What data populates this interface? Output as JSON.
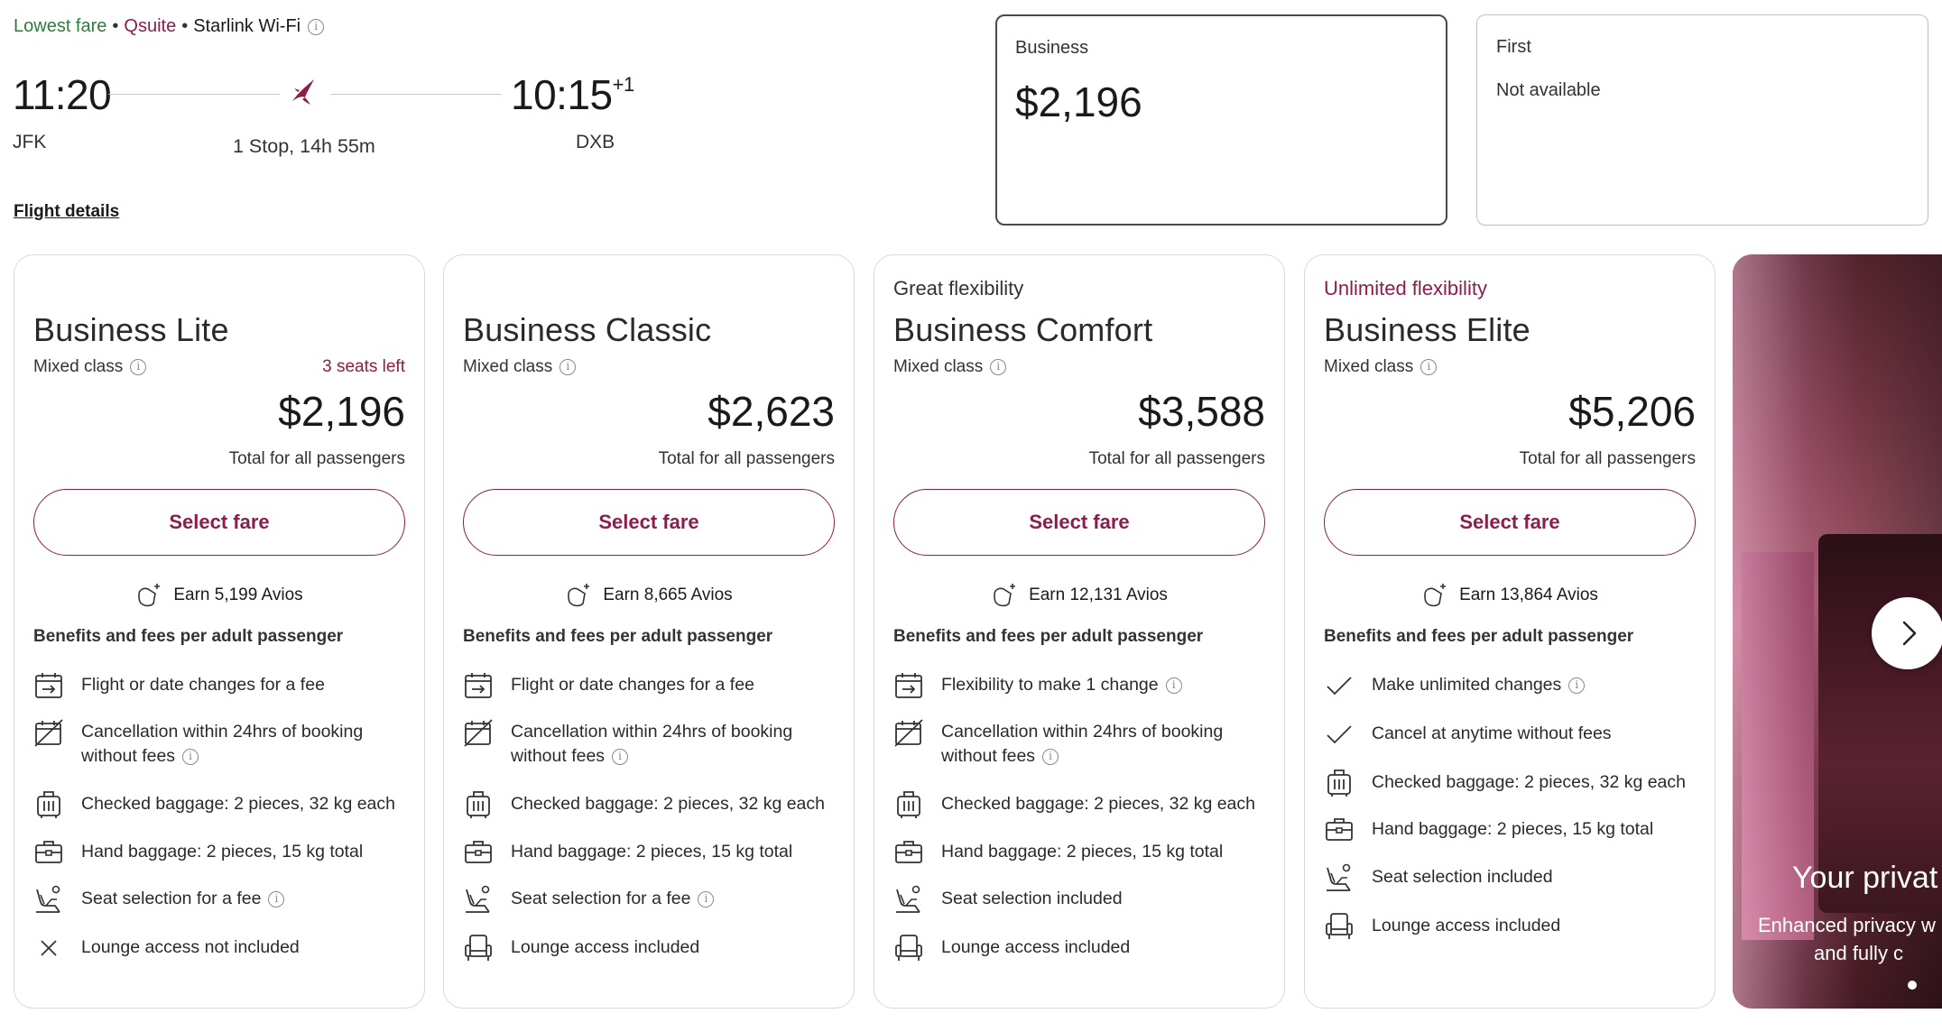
{
  "header": {
    "tags": [
      {
        "text": "Lowest fare",
        "color": "#2f7d3c"
      },
      {
        "text": "Qsuite",
        "color": "#8c1d4c"
      },
      {
        "text": "Starlink Wi-Fi",
        "color": "#333333"
      }
    ],
    "departure_time": "11:20",
    "arrival_time": "10:15",
    "arrival_day_offset": "+1",
    "origin": "JFK",
    "destination": "DXB",
    "duration": "1 Stop, 14h 55m",
    "flight_details_link": "Flight details"
  },
  "cabins": [
    {
      "label": "Business",
      "price": "$2,196",
      "selected": true
    },
    {
      "label": "First",
      "price": "Not available",
      "selected": false
    }
  ],
  "fares": [
    {
      "flex_tag": "",
      "name": "Business Lite",
      "class": "Mixed class",
      "seats_left": "3 seats left",
      "price": "$2,196",
      "total": "Total for all passengers",
      "button": "Select fare",
      "avios": "Earn 5,199 Avios",
      "benefits_heading": "Benefits and fees per adult passenger",
      "benefits": [
        {
          "icon": "calendar-change-icon",
          "text": "Flight or date changes for a fee",
          "info": false
        },
        {
          "icon": "calendar-cancel-icon",
          "text": "Cancellation within 24hrs of booking without fees",
          "info": true
        },
        {
          "icon": "checked-baggage-icon",
          "text": "Checked baggage: 2 pieces, 32 kg each",
          "info": false
        },
        {
          "icon": "hand-baggage-icon",
          "text": "Hand baggage: 2 pieces, 15 kg total",
          "info": false
        },
        {
          "icon": "seat-icon",
          "text": "Seat selection for a fee",
          "info": true
        },
        {
          "icon": "cross-icon",
          "text": "Lounge access not included",
          "info": false
        }
      ]
    },
    {
      "flex_tag": "",
      "name": "Business Classic",
      "class": "Mixed class",
      "seats_left": "",
      "price": "$2,623",
      "total": "Total for all passengers",
      "button": "Select fare",
      "avios": "Earn 8,665 Avios",
      "benefits_heading": "Benefits and fees per adult passenger",
      "benefits": [
        {
          "icon": "calendar-change-icon",
          "text": "Flight or date changes for a fee",
          "info": false
        },
        {
          "icon": "calendar-cancel-icon",
          "text": "Cancellation within 24hrs of booking without fees",
          "info": true
        },
        {
          "icon": "checked-baggage-icon",
          "text": "Checked baggage: 2 pieces, 32 kg each",
          "info": false
        },
        {
          "icon": "hand-baggage-icon",
          "text": "Hand baggage: 2 pieces, 15 kg total",
          "info": false
        },
        {
          "icon": "seat-icon",
          "text": "Seat selection for a fee",
          "info": true
        },
        {
          "icon": "lounge-chair-icon",
          "text": "Lounge access included",
          "info": false
        }
      ]
    },
    {
      "flex_tag": "Great flexibility",
      "flex_tag_color": "#333333",
      "name": "Business Comfort",
      "class": "Mixed class",
      "seats_left": "",
      "price": "$3,588",
      "total": "Total for all passengers",
      "button": "Select fare",
      "avios": "Earn 12,131 Avios",
      "benefits_heading": "Benefits and fees per adult passenger",
      "benefits": [
        {
          "icon": "calendar-change-icon",
          "text": "Flexibility to make 1 change",
          "info": true
        },
        {
          "icon": "calendar-cancel-icon",
          "text": "Cancellation within 24hrs of booking without fees",
          "info": true
        },
        {
          "icon": "checked-baggage-icon",
          "text": "Checked baggage: 2 pieces, 32 kg each",
          "info": false
        },
        {
          "icon": "hand-baggage-icon",
          "text": "Hand baggage: 2 pieces, 15 kg total",
          "info": false
        },
        {
          "icon": "seat-icon",
          "text": "Seat selection included",
          "info": false
        },
        {
          "icon": "lounge-chair-icon",
          "text": "Lounge access included",
          "info": false
        }
      ]
    },
    {
      "flex_tag": "Unlimited flexibility",
      "flex_tag_color": "#8c1d4c",
      "name": "Business Elite",
      "class": "Mixed class",
      "seats_left": "",
      "price": "$5,206",
      "total": "Total for all passengers",
      "button": "Select fare",
      "avios": "Earn 13,864 Avios",
      "benefits_heading": "Benefits and fees per adult passenger",
      "benefits": [
        {
          "icon": "check-icon",
          "text": "Make unlimited changes",
          "info": true
        },
        {
          "icon": "check-icon",
          "text": "Cancel at anytime without fees",
          "info": false
        },
        {
          "icon": "checked-baggage-icon",
          "text": "Checked baggage: 2 pieces, 32 kg each",
          "info": false
        },
        {
          "icon": "hand-baggage-icon",
          "text": "Hand baggage: 2 pieces, 15 kg total",
          "info": false
        },
        {
          "icon": "seat-icon",
          "text": "Seat selection included",
          "info": false
        },
        {
          "icon": "lounge-chair-icon",
          "text": "Lounge access included",
          "info": false
        }
      ]
    }
  ],
  "promo": {
    "title": "Your privat",
    "subtitle_line1": "Enhanced privacy w",
    "subtitle_line2": "and fully c"
  },
  "colors": {
    "brand": "#8c1d4c",
    "lowest_fare": "#2f7d3c"
  }
}
